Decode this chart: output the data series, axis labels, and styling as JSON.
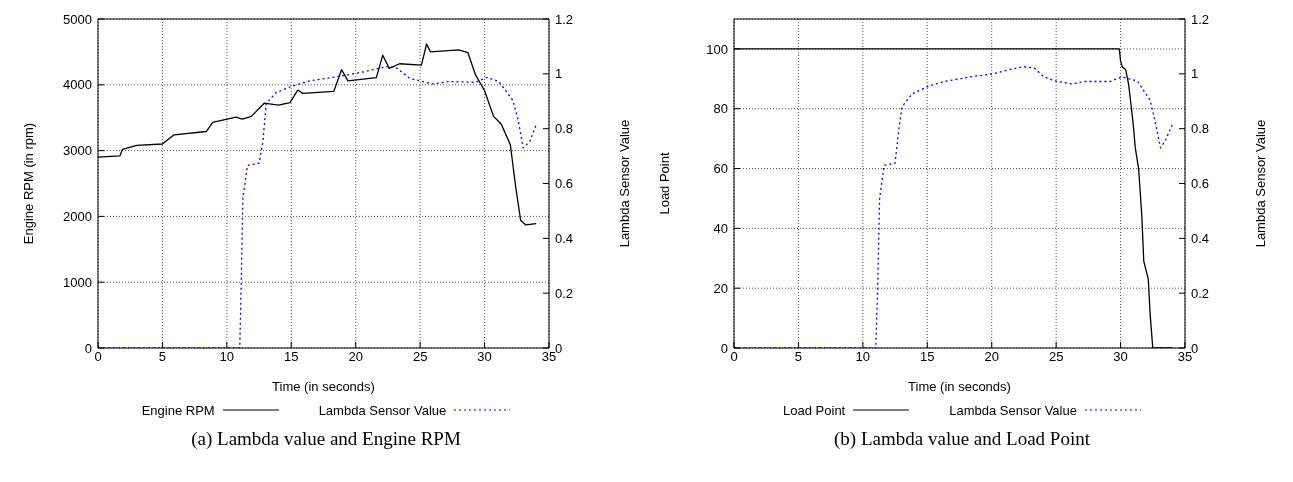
{
  "chart_data": [
    {
      "type": "line",
      "title": "(a) Lambda value and Engine RPM",
      "xlabel": "Time (in seconds)",
      "ylabel": "Engine RPM (in rpm)",
      "y2label": "Lambda Sensor Value",
      "xlim": [
        0,
        35
      ],
      "xticks": [
        0,
        5,
        10,
        15,
        20,
        25,
        30,
        35
      ],
      "ylim": [
        0,
        5000
      ],
      "yticks": [
        0,
        1000,
        2000,
        3000,
        4000,
        5000
      ],
      "y2lim": [
        0,
        1.2
      ],
      "y2ticks": [
        0,
        0.2,
        0.4,
        0.6,
        0.8,
        1,
        1.2
      ],
      "grid": true,
      "legend": "bottom",
      "marker": "none",
      "series": [
        {
          "name": "Engine RPM",
          "color": "#000000",
          "line_style": "solid",
          "x": [
            0,
            1.7,
            1.9,
            3.0,
            5.0,
            5.9,
            8.4,
            8.9,
            10.7,
            11.2,
            11.9,
            12.9,
            14.0,
            14.9,
            15.5,
            15.9,
            18.3,
            18.9,
            19.4,
            21.6,
            22.1,
            22.6,
            23.4,
            25.1,
            25.5,
            25.8,
            28.0,
            28.7,
            29.3,
            30.0,
            30.7,
            31.3,
            32.0,
            32.4,
            32.8,
            33.2,
            34.0
          ],
          "values": [
            2900,
            2920,
            3020,
            3080,
            3100,
            3240,
            3290,
            3430,
            3510,
            3480,
            3520,
            3720,
            3690,
            3730,
            3920,
            3870,
            3900,
            4230,
            4060,
            4110,
            4450,
            4250,
            4320,
            4300,
            4620,
            4500,
            4530,
            4490,
            4150,
            3910,
            3520,
            3400,
            3090,
            2470,
            1940,
            1870,
            1890
          ]
        },
        {
          "name": "Lambda Sensor Value",
          "color": "#0000ff",
          "line_style": "dotted",
          "axis": "y2",
          "x": [
            0,
            11.0,
            11.1,
            11.24,
            11.6,
            12.5,
            12.8,
            13.05,
            13.8,
            15.0,
            16.4,
            18.5,
            20.5,
            22.35,
            23.1,
            24.2,
            26.0,
            27.3,
            29.3,
            30.2,
            31.1,
            32.2,
            32.6,
            33.0,
            33.5,
            34.0
          ],
          "values": [
            0,
            0,
            0.2,
            0.545,
            0.666,
            0.674,
            0.753,
            0.891,
            0.931,
            0.954,
            0.974,
            0.989,
            1.006,
            1.026,
            1.024,
            0.983,
            0.963,
            0.972,
            0.969,
            0.987,
            0.972,
            0.903,
            0.833,
            0.73,
            0.753,
            0.813
          ]
        }
      ]
    },
    {
      "type": "line",
      "title": "(b) Lambda value and Load Point",
      "xlabel": "Time (in seconds)",
      "ylabel": "Load Point",
      "y2label": "Lambda Sensor Value",
      "xlim": [
        0,
        35
      ],
      "xticks": [
        0,
        5,
        10,
        15,
        20,
        25,
        30,
        35
      ],
      "ylim": [
        0,
        110
      ],
      "yticks": [
        0,
        20,
        40,
        60,
        80,
        100
      ],
      "y2lim": [
        0,
        1.2
      ],
      "y2ticks": [
        0,
        0.2,
        0.4,
        0.6,
        0.8,
        1,
        1.2
      ],
      "grid": true,
      "legend": "bottom",
      "marker": "none",
      "series": [
        {
          "name": "Load Point",
          "color": "#000000",
          "line_style": "solid",
          "x": [
            0,
            29.9,
            30.0,
            30.13,
            30.4,
            30.63,
            30.9,
            31.0,
            31.14,
            31.4,
            31.65,
            31.8,
            32.15,
            32.3,
            32.5,
            34.0
          ],
          "values": [
            100,
            100,
            96,
            94,
            93,
            88,
            78,
            74,
            67,
            60,
            44,
            29,
            23,
            11,
            0,
            0
          ]
        },
        {
          "name": "Lambda Sensor Value",
          "color": "#0000ff",
          "line_style": "dotted",
          "axis": "y2",
          "x": [
            0,
            11.0,
            11.14,
            11.3,
            11.65,
            12.5,
            12.8,
            13.04,
            13.8,
            15.06,
            16.3,
            18.35,
            20.1,
            21.4,
            22.5,
            23.3,
            24.05,
            24.9,
            26.2,
            27.2,
            29.2,
            30.1,
            31.3,
            32.3,
            32.7,
            33.1,
            33.5,
            34.0
          ],
          "values": [
            0,
            0,
            0.2,
            0.545,
            0.666,
            0.674,
            0.8,
            0.88,
            0.926,
            0.954,
            0.972,
            0.989,
            1.0,
            1.016,
            1.026,
            1.021,
            0.989,
            0.974,
            0.963,
            0.972,
            0.972,
            0.989,
            0.974,
            0.903,
            0.822,
            0.73,
            0.759,
            0.813
          ]
        }
      ]
    }
  ]
}
